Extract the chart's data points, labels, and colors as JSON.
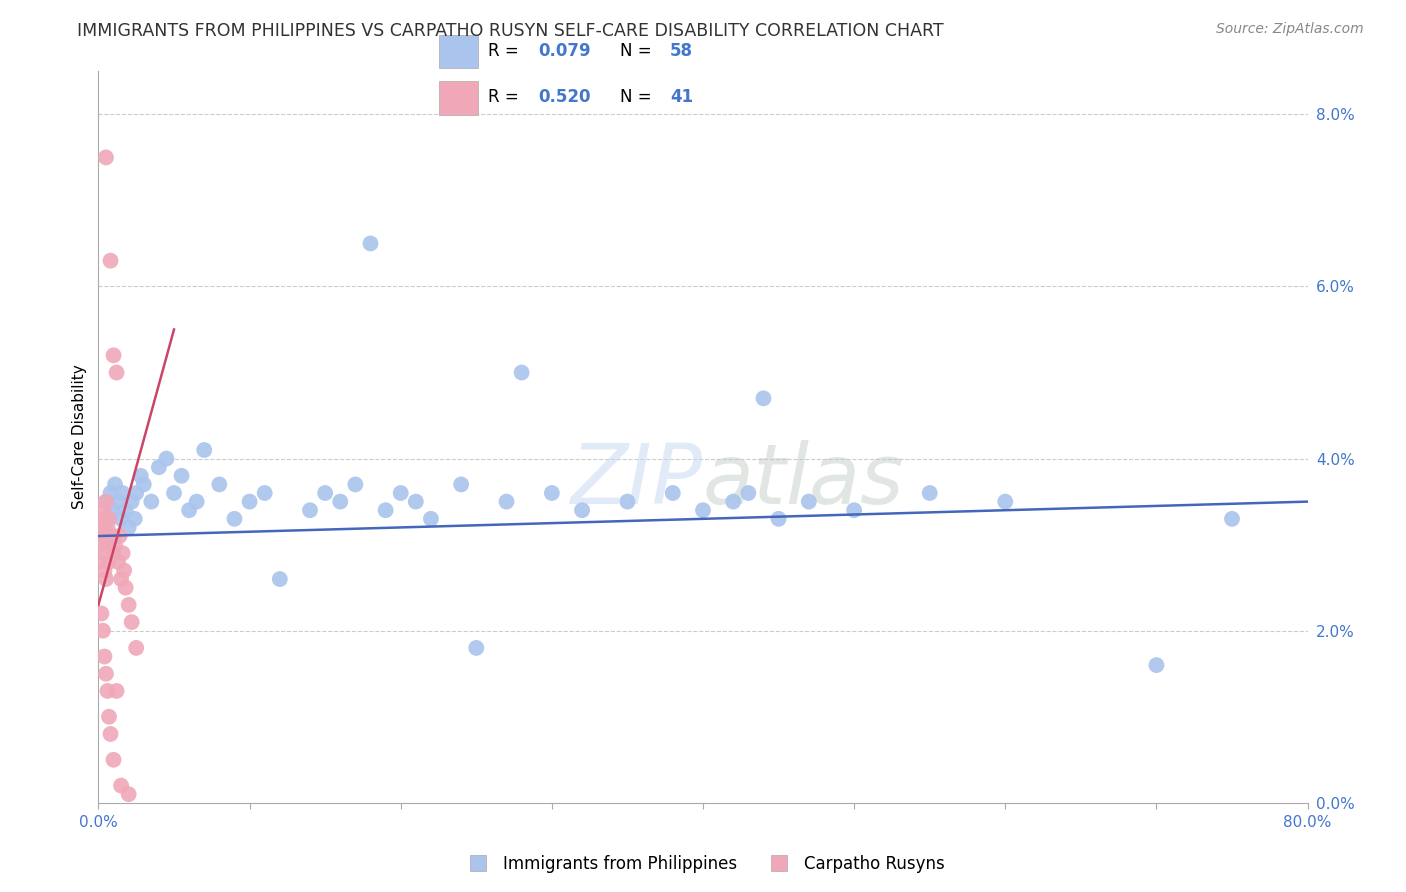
{
  "title": "IMMIGRANTS FROM PHILIPPINES VS CARPATHO RUSYN SELF-CARE DISABILITY CORRELATION CHART",
  "source": "Source: ZipAtlas.com",
  "ylabel": "Self-Care Disability",
  "watermark": "ZIPatlas",
  "legend_label1": "Immigrants from Philippines",
  "legend_label2": "Carpatho Rusyns",
  "R1": 0.079,
  "N1": 58,
  "R2": 0.52,
  "N2": 41,
  "blue_color": "#aac4ed",
  "pink_color": "#f0a8b8",
  "blue_line_color": "#4466bb",
  "pink_line_color": "#cc4466",
  "blue_x": [
    0.3,
    0.5,
    0.7,
    0.8,
    0.9,
    1.0,
    1.1,
    1.3,
    1.5,
    1.6,
    1.8,
    2.0,
    2.2,
    2.4,
    2.5,
    2.8,
    3.0,
    3.5,
    4.0,
    4.5,
    5.0,
    5.5,
    6.0,
    6.5,
    7.0,
    8.0,
    9.0,
    10.0,
    11.0,
    12.0,
    14.0,
    15.0,
    16.0,
    17.0,
    18.0,
    19.0,
    20.0,
    21.0,
    22.0,
    24.0,
    25.0,
    27.0,
    28.0,
    30.0,
    32.0,
    35.0,
    38.0,
    40.0,
    42.0,
    43.0,
    44.0,
    45.0,
    47.0,
    50.0,
    55.0,
    60.0,
    70.0,
    75.0
  ],
  "blue_y": [
    3.2,
    3.5,
    3.3,
    3.6,
    3.4,
    3.1,
    3.7,
    3.5,
    3.3,
    3.6,
    3.4,
    3.2,
    3.5,
    3.3,
    3.6,
    3.8,
    3.7,
    3.5,
    3.9,
    4.0,
    3.6,
    3.8,
    3.4,
    3.5,
    4.1,
    3.7,
    3.3,
    3.5,
    3.6,
    2.6,
    3.4,
    3.6,
    3.5,
    3.7,
    6.5,
    3.4,
    3.6,
    3.5,
    3.3,
    3.7,
    1.8,
    3.5,
    5.0,
    3.6,
    3.4,
    3.5,
    3.6,
    3.4,
    3.5,
    3.6,
    4.7,
    3.3,
    3.5,
    3.4,
    3.6,
    3.5,
    1.6,
    3.3
  ],
  "pink_x": [
    0.1,
    0.2,
    0.2,
    0.3,
    0.3,
    0.3,
    0.4,
    0.4,
    0.5,
    0.5,
    0.5,
    0.6,
    0.6,
    0.7,
    0.7,
    0.8,
    0.9,
    1.0,
    1.0,
    1.1,
    1.2,
    1.3,
    1.4,
    1.5,
    1.6,
    1.7,
    1.8,
    2.0,
    2.2,
    2.5,
    0.2,
    0.3,
    0.4,
    0.5,
    0.6,
    0.7,
    0.8,
    1.0,
    1.2,
    1.5,
    2.0
  ],
  "pink_y": [
    2.8,
    3.2,
    3.0,
    3.4,
    2.9,
    3.1,
    3.3,
    2.7,
    7.5,
    3.5,
    2.6,
    3.2,
    3.0,
    3.3,
    2.8,
    6.3,
    3.1,
    5.2,
    2.9,
    3.0,
    5.0,
    2.8,
    3.1,
    2.6,
    2.9,
    2.7,
    2.5,
    2.3,
    2.1,
    1.8,
    2.2,
    2.0,
    1.7,
    1.5,
    1.3,
    1.0,
    0.8,
    0.5,
    1.3,
    0.2,
    0.1
  ],
  "xlim": [
    0,
    80
  ],
  "ylim": [
    0,
    8.5
  ],
  "yticks_right": [
    0,
    2,
    4,
    6,
    8
  ],
  "ytick_labels_right": [
    "0.0%",
    "2.0%",
    "4.0%",
    "6.0%",
    "8.0%"
  ],
  "xtick_positions": [
    0,
    10,
    20,
    30,
    40,
    50,
    60,
    70,
    80
  ],
  "xtick_labels": [
    "0.0%",
    "",
    "",
    "",
    "",
    "",
    "",
    "",
    "80.0%"
  ],
  "blue_trend_x0": 0,
  "blue_trend_y0": 3.1,
  "blue_trend_x1": 80,
  "blue_trend_y1": 3.5,
  "pink_trend_x0": 0,
  "pink_trend_y0": 2.3,
  "pink_trend_x1": 5,
  "pink_trend_y1": 5.5
}
